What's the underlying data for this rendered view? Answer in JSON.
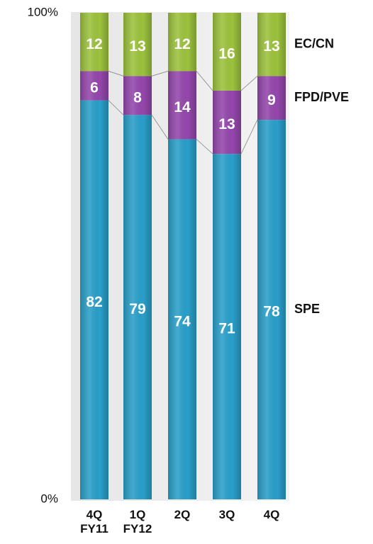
{
  "chart_data": {
    "type": "stacked_bar",
    "categories": [
      "4Q\nFY11",
      "1Q\nFY12",
      "2Q",
      "3Q",
      "4Q"
    ],
    "series": [
      {
        "name": "SPE",
        "color": "#2a9fc9",
        "values": [
          82,
          79,
          74,
          71,
          78
        ]
      },
      {
        "name": "FPD/PVE",
        "color": "#9447ac",
        "values": [
          6,
          8,
          14,
          13,
          9
        ]
      },
      {
        "name": "EC/CN",
        "color": "#9cc23d",
        "values": [
          12,
          13,
          12,
          16,
          13
        ]
      }
    ],
    "ylim": [
      0,
      100
    ],
    "yticks": [
      {
        "value": 0,
        "label": "0%"
      },
      {
        "value": 100,
        "label": "100%"
      }
    ]
  }
}
